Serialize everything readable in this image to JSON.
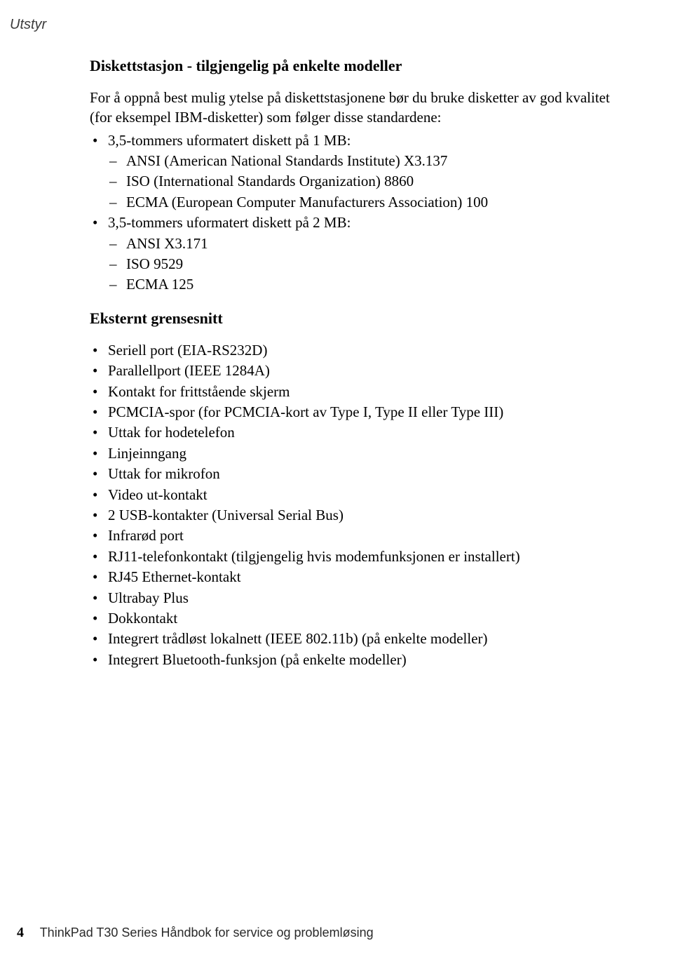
{
  "page": {
    "running_head": "Utstyr",
    "number": "4",
    "footer_text": "ThinkPad T30 Series Håndbok for service og problemløsing"
  },
  "typography": {
    "body_fontsize_pt": 16,
    "heading_fontsize_pt": 16,
    "running_head_fontsize_pt": 15,
    "footer_fontsize_pt": 13,
    "text_color": "#000000",
    "running_head_color": "#3b3b3b",
    "background_color": "#ffffff",
    "body_font": "Palatino",
    "running_head_font": "Arial Italic"
  },
  "section1": {
    "title": "Diskettstasjon - tilgjengelig på enkelte modeller",
    "intro": "For å oppnå best mulig ytelse på diskettstasjonene bør du bruke disketter av god kvalitet (for eksempel IBM-disketter) som følger disse standardene:",
    "items": [
      {
        "label": "3,5-tommers uformatert diskett på 1 MB:",
        "sub": [
          "ANSI (American National Standards Institute) X3.137",
          "ISO (International Standards Organization) 8860",
          "ECMA (European Computer Manufacturers Association) 100"
        ]
      },
      {
        "label": "3,5-tommers uformatert diskett på 2 MB:",
        "sub": [
          "ANSI X3.171",
          "ISO 9529",
          "ECMA 125"
        ]
      }
    ]
  },
  "section2": {
    "title": "Eksternt grensesnitt",
    "items": [
      "Seriell port (EIA-RS232D)",
      "Parallellport (IEEE 1284A)",
      "Kontakt for frittstående skjerm",
      "PCMCIA-spor (for PCMCIA-kort av Type I, Type II eller Type III)",
      "Uttak for hodetelefon",
      "Linjeinngang",
      "Uttak for mikrofon",
      "Video ut-kontakt",
      "2 USB-kontakter (Universal Serial Bus)",
      "Infrarød port",
      "RJ11-telefonkontakt (tilgjengelig hvis modemfunksjonen er installert)",
      "RJ45 Ethernet-kontakt",
      "Ultrabay Plus",
      "Dokkontakt",
      "Integrert trådløst lokalnett (IEEE 802.11b) (på enkelte modeller)",
      "Integrert Bluetooth-funksjon (på enkelte modeller)"
    ]
  }
}
